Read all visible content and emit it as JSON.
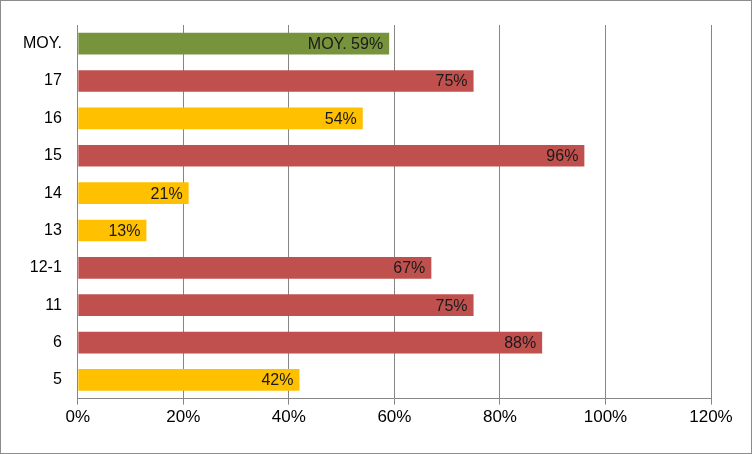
{
  "chart_data": {
    "type": "bar",
    "orientation": "horizontal",
    "categories": [
      "MOY.",
      "17",
      "16",
      "15",
      "14",
      "13",
      "12-1",
      "11",
      "6",
      "5"
    ],
    "values": [
      59,
      75,
      54,
      96,
      21,
      13,
      67,
      75,
      88,
      42
    ],
    "value_labels": [
      "MOY. 59%",
      "75%",
      "54%",
      "96%",
      "21%",
      "13%",
      "67%",
      "75%",
      "88%",
      "42%"
    ],
    "colors": [
      "#77933c",
      "#c0504d",
      "#ffc000",
      "#c0504d",
      "#ffc000",
      "#ffc000",
      "#c0504d",
      "#c0504d",
      "#c0504d",
      "#ffc000"
    ],
    "xlim": [
      0,
      120
    ],
    "xticks": [
      {
        "value": 0,
        "label": "0%"
      },
      {
        "value": 20,
        "label": "20%"
      },
      {
        "value": 40,
        "label": "40%"
      },
      {
        "value": 60,
        "label": "60%"
      },
      {
        "value": 80,
        "label": "80%"
      },
      {
        "value": 100,
        "label": "100%"
      },
      {
        "value": 120,
        "label": "120%"
      }
    ],
    "grid": true,
    "data_labels": true
  }
}
